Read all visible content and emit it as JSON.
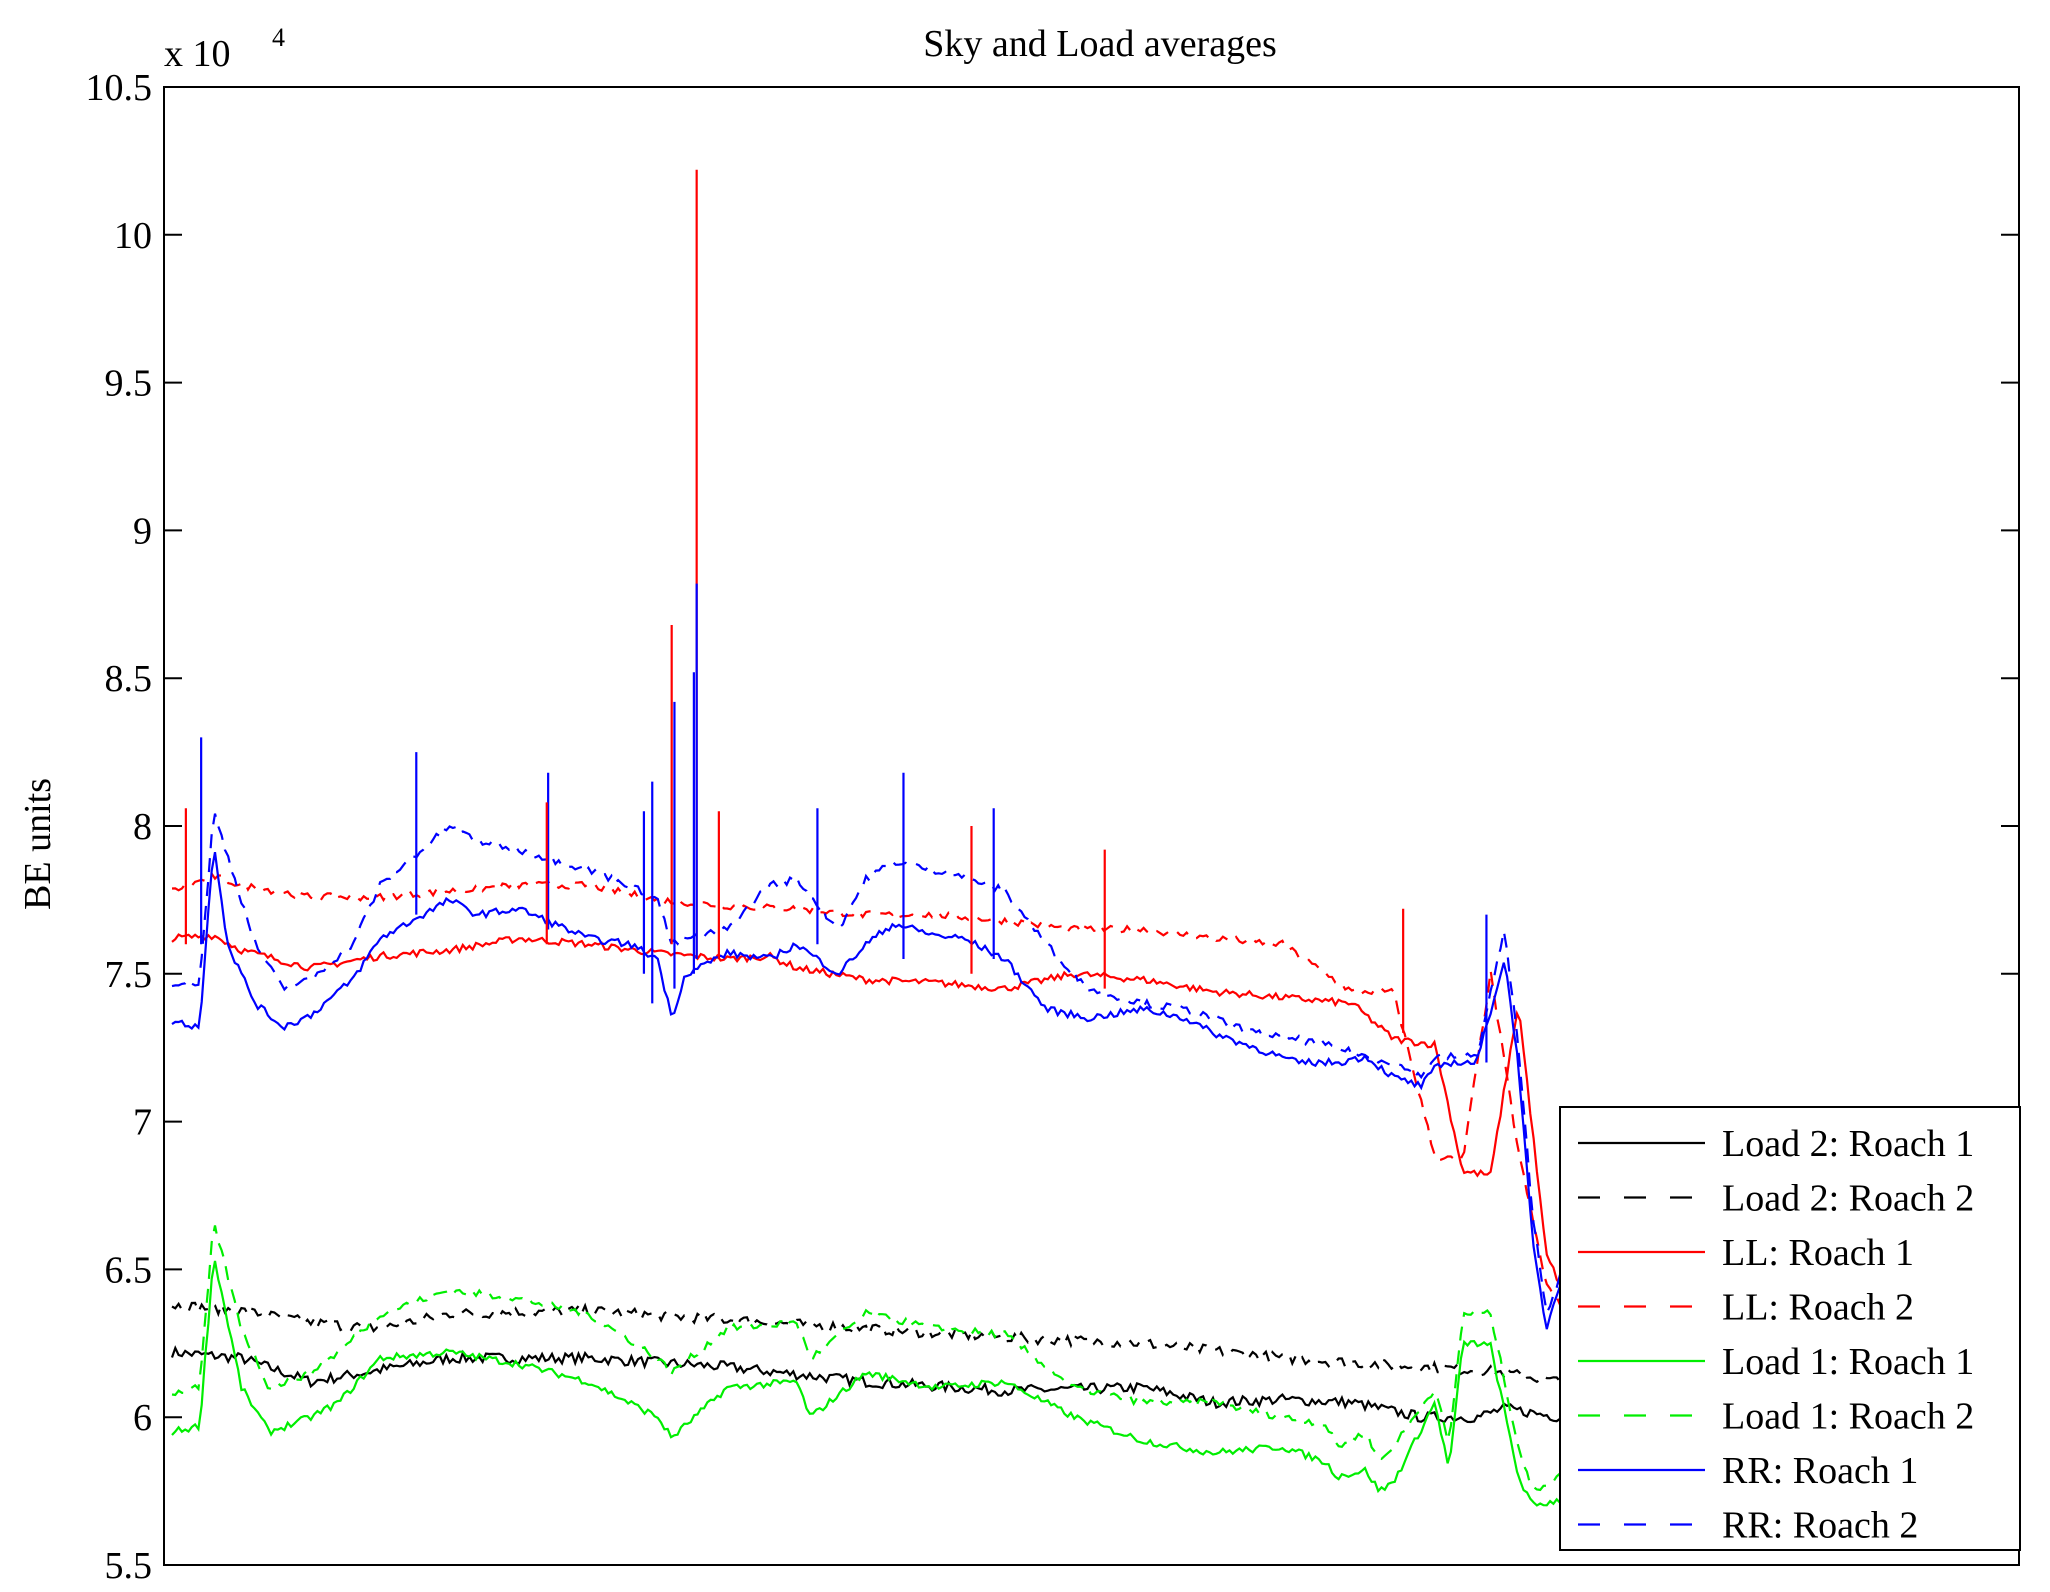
{
  "chart_data": {
    "type": "line",
    "title": "Sky and Load averages",
    "xlabel": "",
    "ylabel": "BE units",
    "y_multiplier_base": "x 10",
    "y_multiplier_exp": "4",
    "ylim": [
      5.5,
      10.5
    ],
    "y_ticks": [
      "5.5",
      "6",
      "6.5",
      "7",
      "7.5",
      "8",
      "8.5",
      "9",
      "9.5",
      "10",
      "10.5"
    ],
    "y_tick_values": [
      5.5,
      6,
      6.5,
      7,
      7.5,
      8,
      8.5,
      9,
      9.5,
      10,
      10.5
    ],
    "x_ticks_labeled": false,
    "xlim": [
      0,
      100
    ],
    "grid": false,
    "legend_position": "bottom-right",
    "series": [
      {
        "name": "Load 2: Roach 1",
        "color": "#000000",
        "style": "solid",
        "x": [
          0,
          5,
          10,
          20,
          30,
          40,
          50,
          60,
          70,
          75,
          80,
          85,
          90,
          94,
          96,
          100
        ],
        "y": [
          6.22,
          6.2,
          6.12,
          6.2,
          6.2,
          6.17,
          6.12,
          6.09,
          6.1,
          6.05,
          6.06,
          6.05,
          6.0,
          6.0,
          6.03,
          6.0
        ]
      },
      {
        "name": "Load 2: Roach 2",
        "color": "#000000",
        "style": "dashed",
        "x": [
          0,
          5,
          10,
          15,
          20,
          30,
          40,
          50,
          60,
          70,
          80,
          90,
          94,
          96,
          100
        ],
        "y": [
          6.38,
          6.36,
          6.32,
          6.3,
          6.35,
          6.36,
          6.33,
          6.3,
          6.27,
          6.25,
          6.2,
          6.17,
          6.16,
          6.15,
          6.12
        ]
      },
      {
        "name": "LL: Roach 1",
        "color": "#ff0000",
        "style": "solid",
        "x": [
          0,
          3,
          5,
          10,
          15,
          20,
          25,
          30,
          35,
          40,
          43,
          45,
          50,
          55,
          60,
          65,
          70,
          75,
          80,
          85,
          88,
          91,
          93,
          95,
          97,
          99,
          100
        ],
        "y": [
          7.62,
          7.63,
          7.58,
          7.52,
          7.56,
          7.58,
          7.62,
          7.6,
          7.57,
          7.55,
          7.56,
          7.52,
          7.48,
          7.47,
          7.45,
          7.5,
          7.48,
          7.44,
          7.42,
          7.4,
          7.28,
          7.26,
          6.83,
          6.82,
          7.4,
          6.55,
          6.45
        ]
      },
      {
        "name": "LL: Roach 2",
        "color": "#ff0000",
        "style": "dashed",
        "x": [
          0,
          3,
          5,
          10,
          15,
          20,
          25,
          30,
          35,
          40,
          45,
          50,
          55,
          60,
          65,
          70,
          75,
          80,
          85,
          88,
          91,
          93,
          95,
          97,
          99,
          100
        ],
        "y": [
          7.78,
          7.83,
          7.8,
          7.76,
          7.76,
          7.78,
          7.8,
          7.8,
          7.75,
          7.73,
          7.72,
          7.7,
          7.7,
          7.68,
          7.65,
          7.65,
          7.62,
          7.6,
          7.44,
          7.44,
          6.88,
          6.87,
          7.5,
          6.9,
          6.45,
          6.38
        ]
      },
      {
        "name": "Load 1: Roach 1",
        "color": "#00ee00",
        "style": "solid",
        "x": [
          0,
          2,
          3,
          5,
          7,
          10,
          12,
          15,
          20,
          25,
          30,
          35,
          36,
          40,
          45,
          46,
          50,
          55,
          60,
          65,
          70,
          75,
          80,
          83,
          84,
          86,
          87,
          88,
          91,
          92,
          93,
          94,
          95,
          97,
          98,
          100
        ],
        "y": [
          5.95,
          5.97,
          6.55,
          6.1,
          5.95,
          6.0,
          6.05,
          6.2,
          6.22,
          6.18,
          6.12,
          6.0,
          5.93,
          6.1,
          6.12,
          6.0,
          6.15,
          6.1,
          6.12,
          6.0,
          5.92,
          5.88,
          5.9,
          5.85,
          5.8,
          5.82,
          5.75,
          5.78,
          6.05,
          5.82,
          6.25,
          6.25,
          6.24,
          5.8,
          5.7,
          5.72
        ]
      },
      {
        "name": "Load 1: Roach 2",
        "color": "#00ee00",
        "style": "dashed",
        "x": [
          0,
          2,
          3,
          5,
          7,
          10,
          12,
          15,
          20,
          25,
          30,
          35,
          36,
          40,
          45,
          46,
          50,
          55,
          60,
          65,
          70,
          75,
          80,
          83,
          84,
          86,
          87,
          88,
          91,
          92,
          93,
          94,
          95,
          97,
          98,
          100
        ],
        "y": [
          6.08,
          6.1,
          6.66,
          6.3,
          6.1,
          6.15,
          6.22,
          6.35,
          6.43,
          6.4,
          6.35,
          6.2,
          6.15,
          6.3,
          6.32,
          6.2,
          6.35,
          6.3,
          6.28,
          6.1,
          6.05,
          6.05,
          6.0,
          5.98,
          5.9,
          5.95,
          5.85,
          5.9,
          6.1,
          5.9,
          6.35,
          6.35,
          6.35,
          5.9,
          5.75,
          5.8
        ]
      },
      {
        "name": "RR: Roach 1",
        "color": "#0000ff",
        "style": "solid",
        "x": [
          0,
          2,
          3,
          4,
          6,
          8,
          10,
          13,
          15,
          20,
          22,
          25,
          30,
          33,
          35,
          36,
          37,
          40,
          43,
          45,
          48,
          50,
          52,
          55,
          57,
          60,
          63,
          66,
          70,
          73,
          75,
          78,
          81,
          84,
          86,
          88,
          90,
          91,
          92,
          94,
          96,
          97,
          98,
          99,
          100
        ],
        "y": [
          7.34,
          7.32,
          7.95,
          7.6,
          7.4,
          7.32,
          7.36,
          7.48,
          7.62,
          7.75,
          7.7,
          7.72,
          7.62,
          7.6,
          7.55,
          7.35,
          7.5,
          7.57,
          7.55,
          7.6,
          7.5,
          7.6,
          7.67,
          7.63,
          7.62,
          7.55,
          7.38,
          7.35,
          7.38,
          7.35,
          7.3,
          7.25,
          7.2,
          7.2,
          7.22,
          7.15,
          7.12,
          7.18,
          7.2,
          7.2,
          7.55,
          7.2,
          6.6,
          6.3,
          6.45
        ]
      },
      {
        "name": "RR: Roach 2",
        "color": "#0000ff",
        "style": "dashed",
        "x": [
          0,
          2,
          3,
          4,
          6,
          8,
          10,
          13,
          15,
          20,
          22,
          25,
          30,
          33,
          35,
          36,
          37,
          40,
          43,
          45,
          48,
          50,
          52,
          55,
          57,
          60,
          63,
          66,
          70,
          73,
          75,
          78,
          81,
          84,
          86,
          88,
          90,
          91,
          92,
          94,
          96,
          97,
          98,
          99,
          100
        ],
        "y": [
          7.47,
          7.47,
          8.05,
          7.9,
          7.6,
          7.45,
          7.48,
          7.6,
          7.8,
          8.0,
          7.95,
          7.92,
          7.85,
          7.8,
          7.75,
          7.6,
          7.62,
          7.65,
          7.8,
          7.82,
          7.65,
          7.82,
          7.88,
          7.85,
          7.83,
          7.78,
          7.6,
          7.45,
          7.4,
          7.38,
          7.35,
          7.3,
          7.28,
          7.25,
          7.22,
          7.2,
          7.15,
          7.22,
          7.22,
          7.22,
          7.65,
          7.25,
          6.7,
          6.35,
          6.48
        ]
      }
    ],
    "spikes": [
      {
        "color": "#ff0000",
        "x": 36.0,
        "top": 8.68,
        "bottom": 7.6
      },
      {
        "color": "#ff0000",
        "x": 37.8,
        "top": 10.22,
        "bottom": 7.55
      },
      {
        "color": "#0000ff",
        "x": 37.8,
        "top": 8.82,
        "bottom": 7.55
      },
      {
        "color": "#0000ff",
        "x": 37.6,
        "top": 8.52,
        "bottom": 7.5
      },
      {
        "color": "#0000ff",
        "x": 36.2,
        "top": 8.42,
        "bottom": 7.45
      },
      {
        "color": "#0000ff",
        "x": 34.6,
        "top": 8.15,
        "bottom": 7.4
      },
      {
        "color": "#0000ff",
        "x": 2.1,
        "top": 8.3,
        "bottom": 7.6
      },
      {
        "color": "#0000ff",
        "x": 17.6,
        "top": 8.25,
        "bottom": 7.7
      },
      {
        "color": "#0000ff",
        "x": 27.1,
        "top": 8.18,
        "bottom": 7.65
      },
      {
        "color": "#0000ff",
        "x": 46.5,
        "top": 8.06,
        "bottom": 7.6
      },
      {
        "color": "#0000ff",
        "x": 52.7,
        "top": 8.18,
        "bottom": 7.55
      },
      {
        "color": "#0000ff",
        "x": 59.2,
        "top": 8.06,
        "bottom": 7.55
      },
      {
        "color": "#0000ff",
        "x": 34.0,
        "top": 8.05,
        "bottom": 7.5
      },
      {
        "color": "#ff0000",
        "x": 39.4,
        "top": 8.05,
        "bottom": 7.55
      },
      {
        "color": "#ff0000",
        "x": 57.6,
        "top": 8.0,
        "bottom": 7.5
      },
      {
        "color": "#ff0000",
        "x": 67.2,
        "top": 7.92,
        "bottom": 7.45
      },
      {
        "color": "#ff0000",
        "x": 1.0,
        "top": 8.06,
        "bottom": 7.6
      },
      {
        "color": "#ff0000",
        "x": 27.0,
        "top": 8.08,
        "bottom": 7.6
      },
      {
        "color": "#ff0000",
        "x": 88.7,
        "top": 7.72,
        "bottom": 7.3
      },
      {
        "color": "#0000ff",
        "x": 94.7,
        "top": 7.7,
        "bottom": 7.2
      }
    ]
  }
}
